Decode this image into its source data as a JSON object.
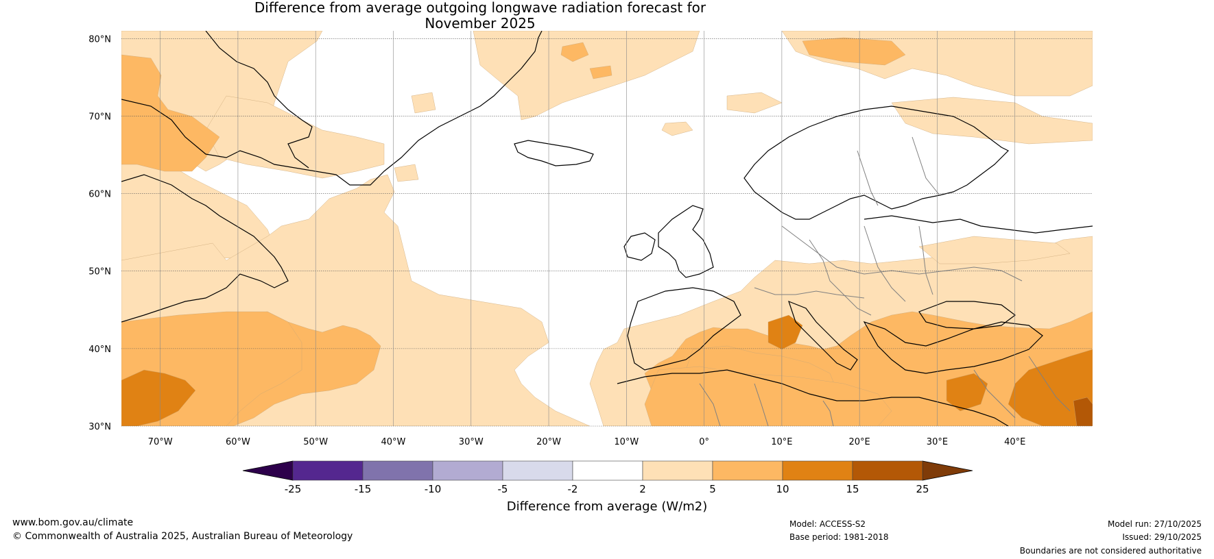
{
  "title": {
    "line1": "Difference from average outgoing longwave radiation forecast for",
    "line2": "November 2025"
  },
  "map": {
    "lon_range": [
      -75,
      50
    ],
    "lat_range": [
      30,
      81
    ],
    "lat_ticks": [
      {
        "value": 80,
        "label": "80°N"
      },
      {
        "value": 70,
        "label": "70°N"
      },
      {
        "value": 60,
        "label": "60°N"
      },
      {
        "value": 50,
        "label": "50°N"
      },
      {
        "value": 40,
        "label": "40°N"
      },
      {
        "value": 30,
        "label": "30°N"
      }
    ],
    "lon_ticks": [
      {
        "value": -70,
        "label": "70°W"
      },
      {
        "value": -60,
        "label": "60°W"
      },
      {
        "value": -50,
        "label": "50°W"
      },
      {
        "value": -40,
        "label": "40°W"
      },
      {
        "value": -30,
        "label": "30°W"
      },
      {
        "value": -20,
        "label": "20°W"
      },
      {
        "value": -10,
        "label": "10°W"
      },
      {
        "value": 0,
        "label": "0°"
      },
      {
        "value": 10,
        "label": "10°E"
      },
      {
        "value": 20,
        "label": "20°E"
      },
      {
        "value": 30,
        "label": "30°E"
      },
      {
        "value": 40,
        "label": "40°E"
      }
    ]
  },
  "colorbar": {
    "label": "Difference from average (W/m2)",
    "ticks": [
      "-25",
      "-15",
      "-10",
      "-5",
      "-2",
      "2",
      "5",
      "10",
      "15",
      "25"
    ],
    "colors": [
      "#54278f",
      "#8073ac",
      "#b2abd2",
      "#d8daeb",
      "#ffffff",
      "#fee0b6",
      "#fdb863",
      "#e08214",
      "#b35806"
    ],
    "under_color": "#2d004b",
    "over_color": "#7f3b08"
  },
  "colors": {
    "c2_5": "#fee0b6",
    "c5_10": "#fdb863",
    "c10_15": "#e08214",
    "c15_25": "#b35806",
    "land_outline": "#000000",
    "border_outline": "#808080"
  },
  "footer": {
    "website": "www.bom.gov.au/climate",
    "copyright": "© Commonwealth of Australia 2025, Australian Bureau of Meteorology",
    "model": "Model: ACCESS-S2",
    "base_period": "Base period: 1981-2018",
    "model_run": "Model run: 27/10/2025",
    "issued": "Issued: 29/10/2025",
    "disclaimer": "Boundaries are not considered authoritative"
  }
}
